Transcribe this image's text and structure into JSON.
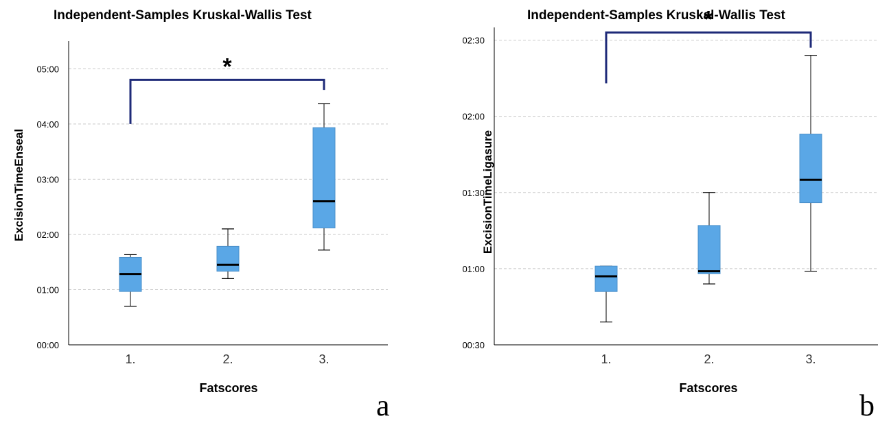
{
  "chart_data": [
    {
      "type": "box",
      "title": "Independent-Samples Kruskal-Wallis Test",
      "xlabel": "Fatscores",
      "ylabel": "ExcisionTimeEnseal",
      "categories": [
        "1.",
        "2.",
        "3."
      ],
      "y_ticks": [
        "00:00",
        "01:00",
        "02:00",
        "03:00",
        "04:00",
        "05:00"
      ],
      "y_unit": "seconds",
      "ylim": [
        0,
        330
      ],
      "grid": true,
      "boxes": [
        {
          "min": 42,
          "q1": 58,
          "median": 77,
          "q3": 95,
          "max": 98
        },
        {
          "min": 72,
          "q1": 80,
          "median": 87,
          "q3": 107,
          "max": 126
        },
        {
          "min": 103,
          "q1": 127,
          "median": 156,
          "q3": 236,
          "max": 262
        }
      ],
      "significance": {
        "from": 0,
        "to": 2,
        "marker": "*",
        "bracket_y": 288,
        "left_drop_y": 240,
        "right_drop_y": 277
      },
      "panel_label": "a",
      "accent": "#5aa7e6",
      "bracket_color": "#1e2a78"
    },
    {
      "type": "box",
      "title": "Independent-Samples Kruskal-Wallis Test",
      "xlabel": "Fatscores",
      "ylabel": "ExcisionTimeLigasure",
      "categories": [
        "1.",
        "2.",
        "3."
      ],
      "y_ticks": [
        "00:30",
        "01:00",
        "01:30",
        "02:00",
        "02:30"
      ],
      "y_unit": "seconds",
      "ylim": [
        30,
        155
      ],
      "grid": true,
      "boxes": [
        {
          "min": 39,
          "q1": 51,
          "median": 57,
          "q3": 61,
          "max": 61
        },
        {
          "min": 54,
          "q1": 58,
          "median": 59,
          "q3": 77,
          "max": 90
        },
        {
          "min": 59,
          "q1": 86,
          "median": 95,
          "q3": 113,
          "max": 144
        }
      ],
      "significance": {
        "from": 0,
        "to": 2,
        "marker": "*",
        "bracket_y": 153,
        "left_drop_y": 133,
        "right_drop_y": 147
      },
      "panel_label": "b",
      "accent": "#5aa7e6",
      "bracket_color": "#1e2a78"
    }
  ]
}
